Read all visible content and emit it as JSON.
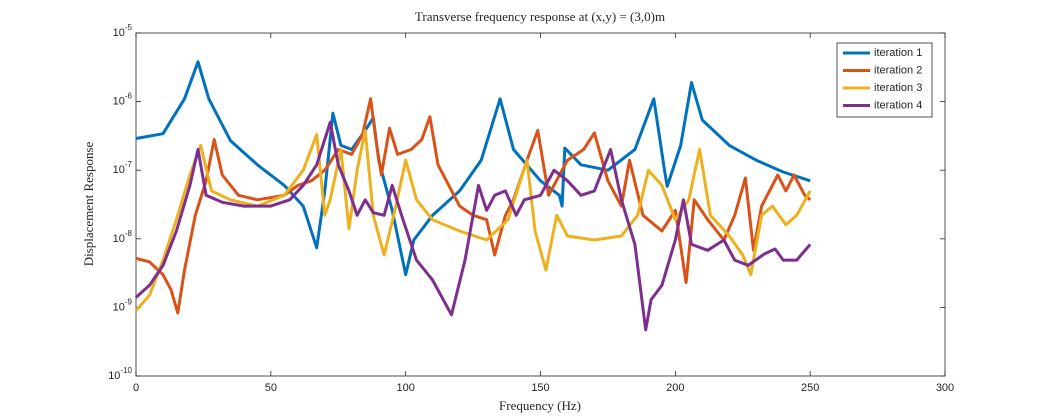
{
  "chart_data": {
    "type": "line",
    "title": "Transverse frequency response at (x,y) = (3,0)m",
    "xlabel": "Frequency (Hz)",
    "ylabel": "Displacement Response",
    "xlim": [
      0,
      300
    ],
    "xticks": [
      0,
      50,
      100,
      150,
      200,
      250,
      300
    ],
    "ylim": [
      1e-10,
      1e-05
    ],
    "yscale": "log",
    "yticks": [
      {
        "value": 1e-10,
        "label": "10^-10"
      },
      {
        "value": 1e-09,
        "label": "10^-9"
      },
      {
        "value": 1e-08,
        "label": "10^-8"
      },
      {
        "value": 1e-07,
        "label": "10^-7"
      },
      {
        "value": 1e-06,
        "label": "10^-6"
      },
      {
        "value": 1e-05,
        "label": "10^-5"
      }
    ],
    "grid": false,
    "legend": "top-right",
    "series": [
      {
        "name": "iteration 1",
        "color": "#0072BD",
        "x": [
          0,
          10,
          18,
          23,
          27,
          35,
          45,
          55,
          62,
          67,
          70,
          73,
          76,
          80,
          85,
          88,
          90,
          95,
          100,
          103,
          110,
          120,
          128,
          135,
          140,
          150,
          157,
          158,
          159,
          165,
          175,
          185,
          192,
          196,
          197,
          202,
          206,
          210,
          220,
          230,
          240,
          250
        ],
        "values": [
          2.9e-07,
          3.4e-07,
          1.1e-06,
          3.8e-06,
          1.1e-06,
          2.7e-07,
          1.2e-07,
          6e-08,
          3e-08,
          7.4e-09,
          5e-08,
          6.8e-07,
          2.3e-07,
          2e-07,
          3.8e-07,
          5.8e-07,
          1.4e-07,
          2.6e-08,
          3e-09,
          9.6e-09,
          2.2e-08,
          5e-08,
          1.4e-07,
          1.1e-06,
          2e-07,
          7e-08,
          4.3e-08,
          3e-08,
          2.1e-07,
          1.2e-07,
          1e-07,
          2e-07,
          1.1e-06,
          1e-07,
          5.8e-08,
          2.3e-07,
          1.9e-06,
          5.4e-07,
          2.3e-07,
          1.4e-07,
          9.4e-08,
          7e-08
        ]
      },
      {
        "name": "iteration 2",
        "color": "#D95319",
        "x": [
          0,
          5,
          10,
          13,
          15.5,
          18,
          22,
          26,
          29,
          32,
          38,
          45,
          55,
          60,
          65,
          70,
          75,
          80,
          84,
          87,
          89,
          91,
          94,
          97,
          102,
          106,
          109,
          112,
          120,
          125,
          130,
          133,
          137,
          140,
          145,
          149,
          153,
          160,
          166,
          170,
          175,
          180,
          183,
          188,
          195,
          200,
          204,
          207,
          212,
          218,
          222,
          226,
          229,
          232,
          238,
          241,
          244,
          248,
          250
        ],
        "values": [
          5.2e-09,
          4.6e-09,
          3e-09,
          1.8e-09,
          8.3e-10,
          3.5e-09,
          2.2e-08,
          7e-08,
          2.8e-07,
          8.5e-08,
          4.3e-08,
          3.7e-08,
          4.3e-08,
          6e-08,
          7e-08,
          1e-07,
          2e-07,
          1.7e-07,
          3.3e-07,
          1.1e-06,
          2.7e-07,
          8.5e-08,
          4.1e-07,
          1.7e-07,
          2e-07,
          2.8e-07,
          6e-07,
          1.2e-07,
          3e-08,
          2.2e-08,
          1.9e-08,
          5.8e-09,
          2.2e-08,
          3.7e-08,
          1.4e-07,
          3.8e-07,
          4.3e-08,
          1.4e-07,
          2e-07,
          3.5e-07,
          7e-08,
          3e-08,
          1.4e-07,
          2.2e-08,
          1.3e-08,
          2.6e-08,
          2.3e-09,
          3.7e-08,
          1.9e-08,
          9.6e-09,
          2.2e-08,
          7.7e-08,
          6.8e-09,
          3e-08,
          8.5e-08,
          5e-08,
          8.5e-08,
          4.3e-08,
          3.7e-08
        ]
      },
      {
        "name": "iteration 3",
        "color": "#EDB120",
        "x": [
          0,
          5,
          10,
          15,
          20,
          24,
          28,
          35,
          45,
          55,
          62,
          67,
          70,
          72,
          76,
          79,
          82,
          85,
          88,
          92,
          96,
          100,
          104,
          110,
          120,
          130,
          138,
          142,
          145,
          148,
          152,
          156,
          160,
          170,
          180,
          186,
          190,
          195,
          200,
          205,
          209,
          213,
          220,
          225,
          228,
          232,
          236,
          241,
          245,
          250
        ],
        "values": [
          9e-10,
          1.5e-09,
          4.9e-09,
          1.9e-08,
          8.5e-08,
          2.3e-07,
          5e-08,
          3.7e-08,
          3e-08,
          4.3e-08,
          1e-07,
          3.3e-07,
          2.2e-08,
          3.7e-08,
          2e-07,
          1.4e-08,
          1e-07,
          3.8e-07,
          2.2e-08,
          5.8e-09,
          2.6e-08,
          1.4e-07,
          3.7e-08,
          1.9e-08,
          1.3e-08,
          9.6e-09,
          1.9e-08,
          6e-08,
          1.4e-07,
          1.3e-08,
          3.5e-09,
          2.2e-08,
          1.1e-08,
          9.6e-09,
          1.1e-08,
          2.2e-08,
          1e-07,
          6e-08,
          1.9e-08,
          3.7e-08,
          2e-07,
          2.2e-08,
          1.1e-08,
          5.8e-09,
          3e-09,
          2.2e-08,
          3e-08,
          1.6e-08,
          2.2e-08,
          5e-08
        ]
      },
      {
        "name": "iteration 4",
        "color": "#7E2F8E",
        "x": [
          0,
          5,
          10,
          15,
          20,
          23,
          26,
          32,
          40,
          50,
          57,
          62,
          67,
          72,
          75,
          79,
          82,
          85,
          88,
          92,
          95,
          99,
          104,
          110,
          117,
          122,
          127,
          130,
          133,
          137,
          141,
          144,
          150,
          155,
          160,
          165,
          170,
          176,
          180,
          185,
          189,
          191,
          195,
          200,
          203,
          206,
          212,
          218,
          222,
          227,
          233,
          237,
          240,
          245,
          250
        ],
        "values": [
          1.4e-09,
          2.1e-09,
          4.1e-09,
          1.3e-08,
          6e-08,
          2e-07,
          4.3e-08,
          3.4e-08,
          3e-08,
          3e-08,
          3.7e-08,
          6e-08,
          1.2e-07,
          5e-07,
          1.2e-07,
          5e-08,
          2.2e-08,
          3.7e-08,
          2.4e-08,
          2.2e-08,
          6e-08,
          1.9e-08,
          4.9e-09,
          2.5e-09,
          7.8e-10,
          4.9e-09,
          6e-08,
          2.6e-08,
          4.3e-08,
          5e-08,
          2.2e-08,
          3.7e-08,
          4.3e-08,
          1e-07,
          7e-08,
          4.3e-08,
          5e-08,
          2e-07,
          3.7e-08,
          8.3e-09,
          4.7e-10,
          1.3e-09,
          2.1e-09,
          9.6e-09,
          3.7e-08,
          8.3e-09,
          6.8e-09,
          9.6e-09,
          4.9e-09,
          4.1e-09,
          6e-09,
          7.1e-09,
          4.9e-09,
          4.9e-09,
          8.3e-09
        ]
      }
    ]
  }
}
